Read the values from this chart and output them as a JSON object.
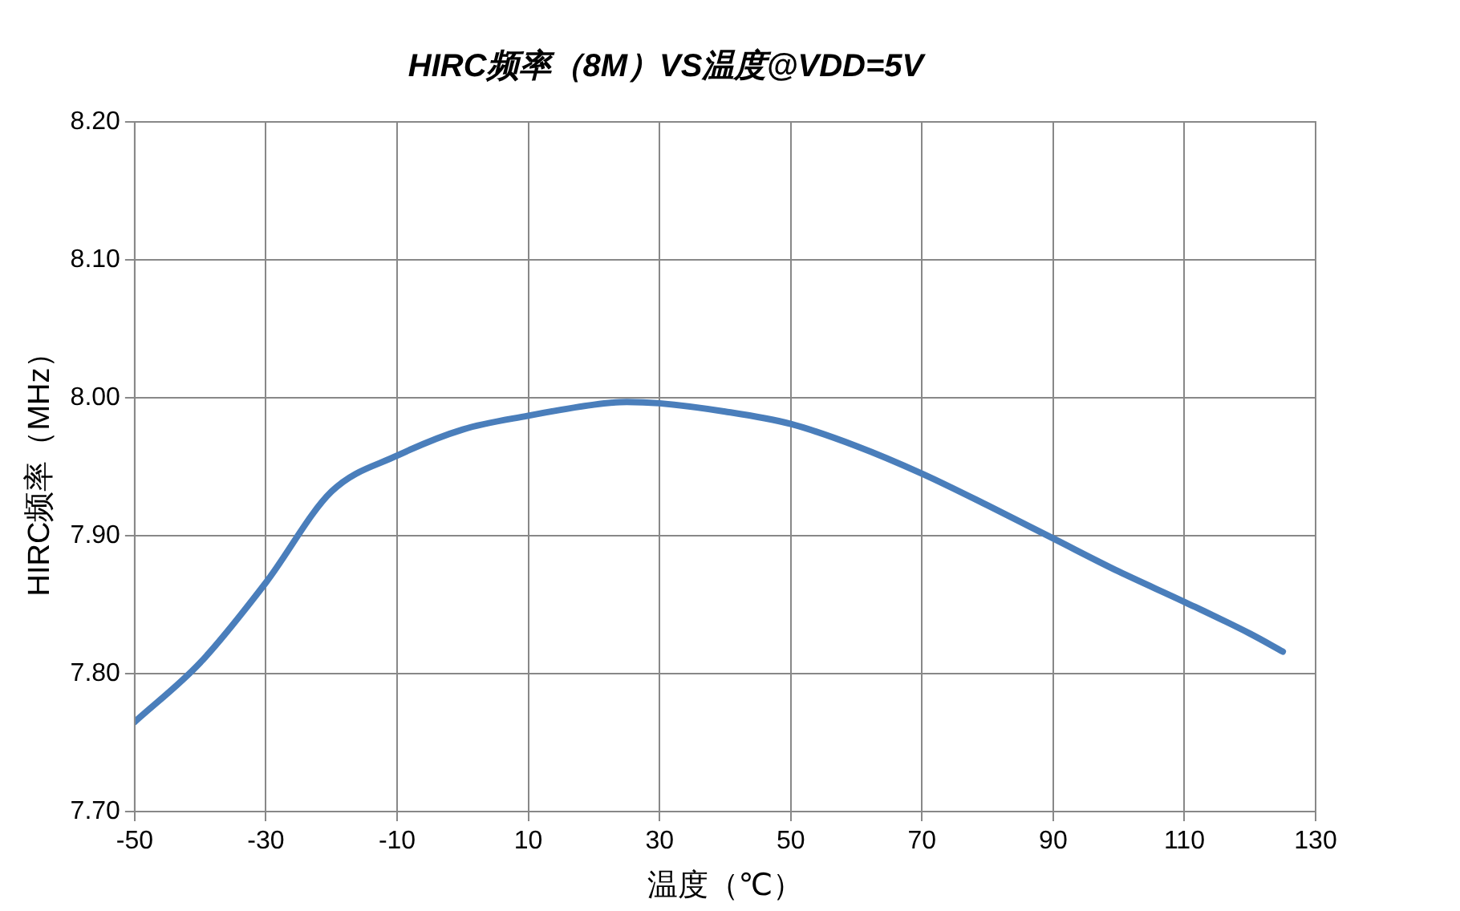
{
  "chart_data": {
    "type": "line",
    "title": "HIRC频率（8M）VS温度@VDD=5V",
    "xlabel": "温度（℃）",
    "ylabel": "HIRC频率（MHz）",
    "x": [
      -50,
      -40,
      -30,
      -20,
      -10,
      0,
      10,
      20,
      25,
      30,
      40,
      50,
      60,
      70,
      80,
      90,
      100,
      110,
      120,
      125
    ],
    "series": [
      {
        "color": "#4a7ebb",
        "values": [
          7.765,
          7.808,
          7.866,
          7.932,
          7.958,
          7.977,
          7.987,
          7.995,
          7.997,
          7.996,
          7.99,
          7.981,
          7.965,
          7.945,
          7.922,
          7.898,
          7.874,
          7.852,
          7.829,
          7.816
        ]
      }
    ],
    "xlim": [
      -50,
      130
    ],
    "xticks": [
      -50,
      -30,
      -10,
      10,
      30,
      50,
      70,
      90,
      110,
      130
    ],
    "ylim": [
      7.7,
      8.2
    ],
    "yticks": [
      {
        "value": 7.7,
        "label": "7.70"
      },
      {
        "value": 7.8,
        "label": "7.80"
      },
      {
        "value": 7.9,
        "label": "7.90"
      },
      {
        "value": 8.0,
        "label": "8.00"
      },
      {
        "value": 8.1,
        "label": "8.10"
      },
      {
        "value": 8.2,
        "label": "8.20"
      }
    ],
    "grid": true,
    "legend": false,
    "marker": "none",
    "line_style": "solid"
  }
}
